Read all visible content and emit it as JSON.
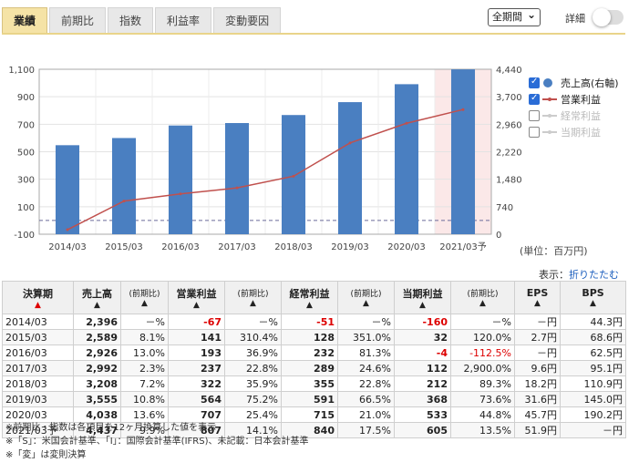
{
  "tabs": [
    {
      "label": "業績",
      "active": true
    },
    {
      "label": "前期比",
      "active": false
    },
    {
      "label": "指数",
      "active": false
    },
    {
      "label": "利益率",
      "active": false
    },
    {
      "label": "変動要因",
      "active": false
    }
  ],
  "period_select": {
    "value": "全期間"
  },
  "detail_label": "詳細",
  "legend": [
    {
      "label": "売上高(右軸)",
      "checked": true,
      "marker": "circle",
      "color": "#4a7fc1"
    },
    {
      "label": "営業利益",
      "checked": true,
      "marker": "line",
      "color": "#c0504d"
    },
    {
      "label": "経常利益",
      "checked": false,
      "marker": "line",
      "color": "#cccccc"
    },
    {
      "label": "当期利益",
      "checked": false,
      "marker": "line",
      "color": "#cccccc"
    }
  ],
  "unit_label": "(単位：百万円)",
  "display": {
    "label": "表示：",
    "link": "折りたたむ"
  },
  "chart_data": {
    "type": "bar",
    "categories": [
      "2014/03",
      "2015/03",
      "2016/03",
      "2017/03",
      "2018/03",
      "2019/03",
      "2020/03",
      "2021/03予"
    ],
    "left_ticks": [
      "1,100",
      "900",
      "700",
      "500",
      "300",
      "100",
      "-100"
    ],
    "right_ticks": [
      "4,440",
      "3,700",
      "2,960",
      "2,220",
      "1,480",
      "740",
      "0"
    ],
    "left_ylim": [
      -100,
      1100
    ],
    "right_ylim": [
      0,
      4440
    ],
    "series": [
      {
        "name": "売上高(右軸)",
        "axis": "right",
        "kind": "bar",
        "color": "#4a7fc1",
        "values": [
          2396,
          2589,
          2926,
          2992,
          3208,
          3555,
          4038,
          4437
        ]
      },
      {
        "name": "営業利益",
        "axis": "left",
        "kind": "line",
        "color": "#c0504d",
        "values": [
          -67,
          141,
          193,
          237,
          322,
          564,
          707,
          807
        ]
      }
    ],
    "forecast_index": 7,
    "zero_line_left": 0
  },
  "table": {
    "headers": {
      "period": "決算期",
      "sales": "売上高",
      "yoy": "(前期比)",
      "op": "営業利益",
      "ord": "経常利益",
      "net": "当期利益",
      "eps": "EPS",
      "bps": "BPS",
      "up": "▲"
    },
    "rows": [
      {
        "period": "2014/03",
        "sales": "2,396",
        "s_yoy": "－%",
        "op": "-67",
        "op_yoy": "－%",
        "ord": "-51",
        "ord_yoy": "－%",
        "net": "-160",
        "net_yoy": "－%",
        "eps": "－円",
        "bps": "44.3円"
      },
      {
        "period": "2015/03",
        "sales": "2,589",
        "s_yoy": "8.1%",
        "op": "141",
        "op_yoy": "310.4%",
        "ord": "128",
        "ord_yoy": "351.0%",
        "net": "32",
        "net_yoy": "120.0%",
        "eps": "2.7円",
        "bps": "68.6円"
      },
      {
        "period": "2016/03",
        "sales": "2,926",
        "s_yoy": "13.0%",
        "op": "193",
        "op_yoy": "36.9%",
        "ord": "232",
        "ord_yoy": "81.3%",
        "net": "-4",
        "net_yoy": "-112.5%",
        "eps": "－円",
        "bps": "62.5円"
      },
      {
        "period": "2017/03",
        "sales": "2,992",
        "s_yoy": "2.3%",
        "op": "237",
        "op_yoy": "22.8%",
        "ord": "289",
        "ord_yoy": "24.6%",
        "net": "112",
        "net_yoy": "2,900.0%",
        "eps": "9.6円",
        "bps": "95.1円"
      },
      {
        "period": "2018/03",
        "sales": "3,208",
        "s_yoy": "7.2%",
        "op": "322",
        "op_yoy": "35.9%",
        "ord": "355",
        "ord_yoy": "22.8%",
        "net": "212",
        "net_yoy": "89.3%",
        "eps": "18.2円",
        "bps": "110.9円"
      },
      {
        "period": "2019/03",
        "sales": "3,555",
        "s_yoy": "10.8%",
        "op": "564",
        "op_yoy": "75.2%",
        "ord": "591",
        "ord_yoy": "66.5%",
        "net": "368",
        "net_yoy": "73.6%",
        "eps": "31.6円",
        "bps": "145.0円"
      },
      {
        "period": "2020/03",
        "sales": "4,038",
        "s_yoy": "13.6%",
        "op": "707",
        "op_yoy": "25.4%",
        "ord": "715",
        "ord_yoy": "21.0%",
        "net": "533",
        "net_yoy": "44.8%",
        "eps": "45.7円",
        "bps": "190.2円"
      },
      {
        "period": "2021/03予",
        "sales": "4,437",
        "s_yoy": "9.9%",
        "op": "807",
        "op_yoy": "14.1%",
        "ord": "840",
        "ord_yoy": "17.5%",
        "net": "605",
        "net_yoy": "13.5%",
        "eps": "51.9円",
        "bps": "－円"
      }
    ]
  },
  "notes": [
    "※前期比・指数は各項目を12ヶ月換算した値を表示",
    "※「S」：米国会計基準、「I」：国際会計基準(IFRS)、未記載：日本会計基準",
    "※「変」は変則決算"
  ]
}
